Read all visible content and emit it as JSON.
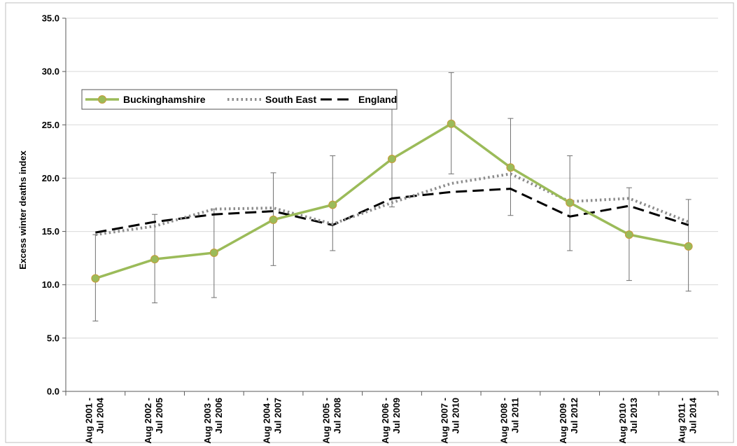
{
  "chart_data": {
    "type": "line",
    "ylabel": "Excess winter deaths index",
    "xlabel": "",
    "ylim": [
      0,
      35
    ],
    "ytick_step": 5,
    "ytick_labels": [
      "0.0",
      "5.0",
      "10.0",
      "15.0",
      "20.0",
      "25.0",
      "30.0",
      "35.0"
    ],
    "grid": true,
    "legend_position": "top-left",
    "categories": [
      [
        "Aug 2001 -",
        "Jul 2004"
      ],
      [
        "Aug 2002 -",
        "Jul 2005"
      ],
      [
        "Aug 2003 -",
        "Jul 2006"
      ],
      [
        "Aug 2004 -",
        "Jul 2007"
      ],
      [
        "Aug 2005 -",
        "Jul 2008"
      ],
      [
        "Aug 2006 -",
        "Jul 2009"
      ],
      [
        "Aug 2007 -",
        "Jul 2010"
      ],
      [
        "Aug 2008 -",
        "Jul 2011"
      ],
      [
        "Aug 2009 -",
        "Jul 2012"
      ],
      [
        "Aug 2010 -",
        "Jul 2013"
      ],
      [
        "Aug 2011 -",
        "Jul 2014"
      ]
    ],
    "series": [
      {
        "name": "Buckinghamshire",
        "style": "solid-markers",
        "color": "#9bbb59",
        "marker_color": "#9bbb59",
        "values": [
          10.6,
          12.4,
          13.0,
          16.1,
          17.5,
          21.8,
          25.1,
          21.0,
          17.7,
          14.7,
          13.6
        ],
        "error_low": [
          6.6,
          8.3,
          8.8,
          11.8,
          13.2,
          17.3,
          20.4,
          16.5,
          13.2,
          10.4,
          9.4
        ],
        "error_high": [
          14.7,
          16.6,
          17.1,
          20.5,
          22.1,
          26.6,
          29.9,
          25.6,
          22.1,
          19.1,
          18.0
        ]
      },
      {
        "name": "South East",
        "style": "dotted",
        "color": "#8c8c8c",
        "values": [
          14.7,
          15.5,
          17.1,
          17.2,
          15.7,
          17.7,
          19.5,
          20.4,
          17.8,
          18.1,
          15.9
        ]
      },
      {
        "name": "England",
        "style": "dashed",
        "color": "#000000",
        "values": [
          14.9,
          15.9,
          16.6,
          16.9,
          15.6,
          18.1,
          18.7,
          19.0,
          16.4,
          17.4,
          15.6
        ]
      }
    ]
  }
}
